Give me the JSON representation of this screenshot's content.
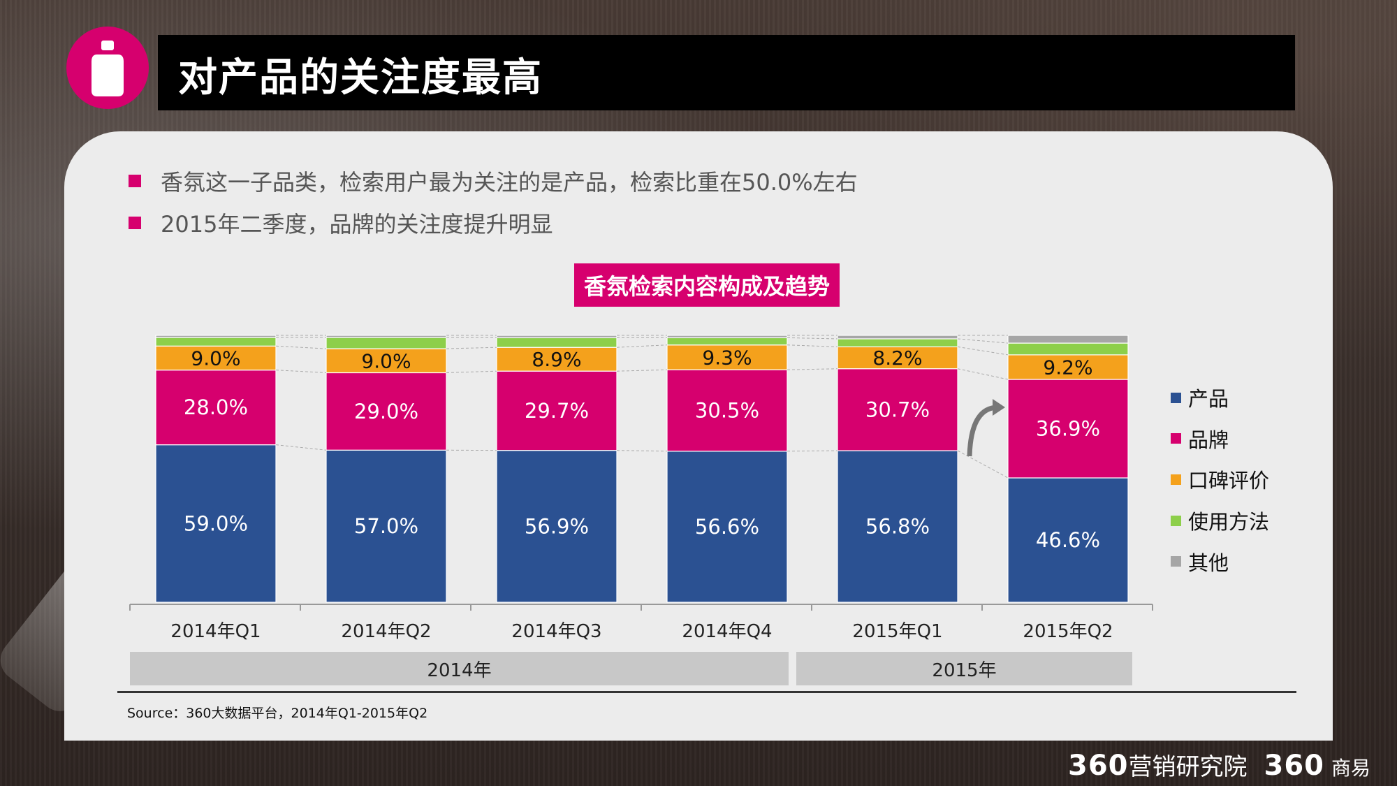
{
  "header": {
    "title": "对产品的关注度最高"
  },
  "bullets": [
    "香氛这一子品类，检索用户最为关注的是产品，检索比重在50.0%左右",
    "2015年二季度，品牌的关注度提升明显"
  ],
  "colors": {
    "accent": "#d6006e",
    "product": "#2b5192",
    "brand": "#d6006e",
    "review": "#f4a11c",
    "usage": "#8dcf4a",
    "other": "#a6a6a6"
  },
  "chart_data": {
    "type": "bar",
    "stacked": true,
    "title": "香氛检索内容构成及趋势",
    "categories": [
      "2014年Q1",
      "2014年Q2",
      "2014年Q3",
      "2014年Q4",
      "2015年Q1",
      "2015年Q2"
    ],
    "series": [
      {
        "name": "产品",
        "color": "#2b5192",
        "values": [
          59.0,
          57.0,
          56.9,
          56.6,
          56.8,
          46.6
        ],
        "labels": [
          "59.0%",
          "57.0%",
          "56.9%",
          "56.6%",
          "56.8%",
          "46.6%"
        ]
      },
      {
        "name": "品牌",
        "color": "#d6006e",
        "values": [
          28.0,
          29.0,
          29.7,
          30.5,
          30.7,
          36.9
        ],
        "labels": [
          "28.0%",
          "29.0%",
          "29.7%",
          "30.5%",
          "30.7%",
          "36.9%"
        ]
      },
      {
        "name": "口碑评价",
        "color": "#f4a11c",
        "values": [
          9.0,
          9.0,
          8.9,
          9.3,
          8.2,
          9.2
        ],
        "labels": [
          "9.0%",
          "9.0%",
          "8.9%",
          "9.3%",
          "8.2%",
          "9.2%"
        ]
      },
      {
        "name": "使用方法",
        "color": "#8dcf4a",
        "values": [
          3.2,
          4.2,
          3.6,
          2.7,
          3.0,
          4.4
        ],
        "labels": []
      },
      {
        "name": "其他",
        "color": "#a6a6a6",
        "values": [
          0.8,
          0.8,
          0.9,
          0.9,
          1.3,
          2.9
        ],
        "labels": []
      }
    ],
    "ylim": [
      0,
      100
    ],
    "groups": [
      {
        "label": "2014年",
        "categories": [
          "2014年Q1",
          "2014年Q2",
          "2014年Q3",
          "2014年Q4"
        ]
      },
      {
        "label": "2015年",
        "categories": [
          "2015年Q1",
          "2015年Q2"
        ]
      }
    ],
    "legend_position": "right"
  },
  "source": "Source：360大数据平台，2014年Q1-2015年Q2",
  "footer": {
    "brand1_num": "360",
    "brand1_text": "营销研究院",
    "brand2_num": "360",
    "brand2_text": "商易"
  }
}
